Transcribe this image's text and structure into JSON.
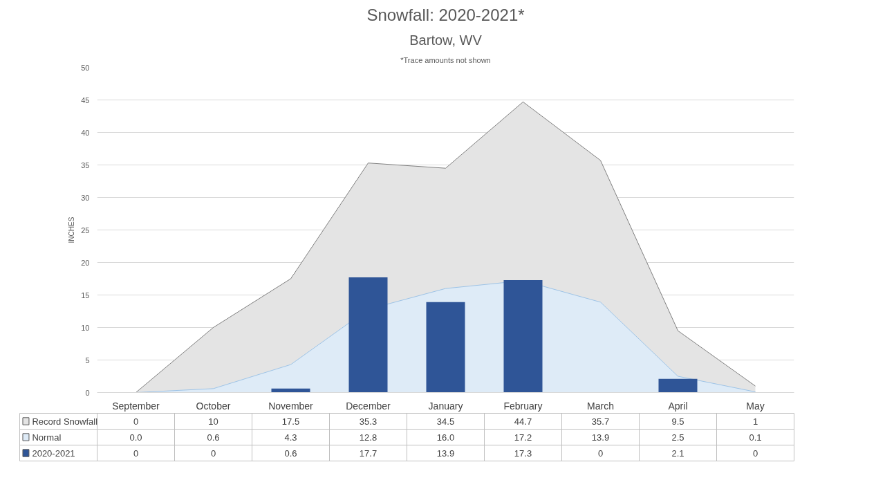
{
  "chart_data": {
    "type": "area",
    "title": "Snowfall: 2020-2021*",
    "subtitle": "Bartow, WV",
    "ylabel": "INCHES",
    "annotations": [
      "*Trace amounts not shown"
    ],
    "categories": [
      "September",
      "October",
      "November",
      "December",
      "January",
      "February",
      "March",
      "April",
      "May"
    ],
    "series": [
      {
        "name": "Record Snowfall",
        "color": "#e4e4e4",
        "values": [
          0,
          10,
          17.5,
          35.3,
          34.5,
          44.7,
          35.7,
          9.5,
          1
        ],
        "value_labels": [
          "0",
          "10",
          "17.5",
          "35.3",
          "34.5",
          "44.7",
          "35.7",
          "9.5",
          "1"
        ]
      },
      {
        "name": "Normal",
        "color": "#deebf7",
        "values": [
          0.0,
          0.6,
          4.3,
          12.8,
          16.0,
          17.2,
          13.9,
          2.5,
          0.1
        ],
        "value_labels": [
          "0.0",
          "0.6",
          "4.3",
          "12.8",
          "16.0",
          "17.2",
          "13.9",
          "2.5",
          "0.1"
        ]
      },
      {
        "name": "2020-2021",
        "type": "bar",
        "color": "#2f5597",
        "values": [
          0,
          0,
          0.6,
          17.7,
          13.9,
          17.3,
          0,
          2.1,
          0
        ],
        "value_labels": [
          "0",
          "0",
          "0.6",
          "17.7",
          "13.9",
          "17.3",
          "0",
          "2.1",
          "0"
        ]
      }
    ],
    "ylim": [
      0,
      50
    ],
    "yticks": [
      0,
      5,
      10,
      15,
      20,
      25,
      30,
      35,
      40,
      45,
      50
    ],
    "grid": "y",
    "legend": "bottom"
  }
}
